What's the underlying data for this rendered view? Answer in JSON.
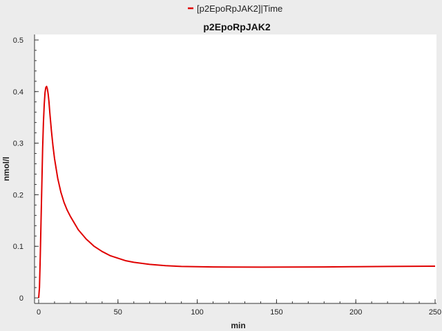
{
  "chart_data": {
    "type": "line",
    "title": "p2EpoRpJAK2",
    "xlabel": "min",
    "ylabel": "nmol/l",
    "xlim": [
      0,
      250
    ],
    "ylim": [
      0,
      0.5
    ],
    "xticks": [
      0,
      50,
      100,
      150,
      200,
      250
    ],
    "yticks": [
      0,
      0.1,
      0.2,
      0.3,
      0.4,
      0.5
    ],
    "ytick_labels": [
      "0",
      "0.1",
      "0.2",
      "0.3",
      "0.4",
      "0.5"
    ],
    "grid": false,
    "legend_position": "top-center",
    "series": [
      {
        "name": "[p2EpoRpJAK2]|Time",
        "color": "#e00000",
        "x": [
          0,
          0.5,
          1,
          1.5,
          2,
          2.5,
          3,
          3.5,
          4,
          4.5,
          5,
          5.5,
          6,
          6.5,
          7,
          8,
          9,
          10,
          12,
          14,
          16,
          18,
          20,
          25,
          30,
          35,
          40,
          45,
          50,
          55,
          60,
          70,
          80,
          90,
          100,
          110,
          120,
          140,
          160,
          180,
          200,
          220,
          250
        ],
        "y": [
          0,
          0.02,
          0.08,
          0.15,
          0.22,
          0.29,
          0.34,
          0.375,
          0.398,
          0.408,
          0.41,
          0.405,
          0.395,
          0.38,
          0.36,
          0.325,
          0.295,
          0.27,
          0.232,
          0.205,
          0.185,
          0.17,
          0.158,
          0.132,
          0.114,
          0.1,
          0.09,
          0.082,
          0.077,
          0.072,
          0.069,
          0.065,
          0.0625,
          0.061,
          0.0605,
          0.06,
          0.0598,
          0.0597,
          0.0598,
          0.06,
          0.0605,
          0.061,
          0.0615
        ]
      }
    ]
  }
}
